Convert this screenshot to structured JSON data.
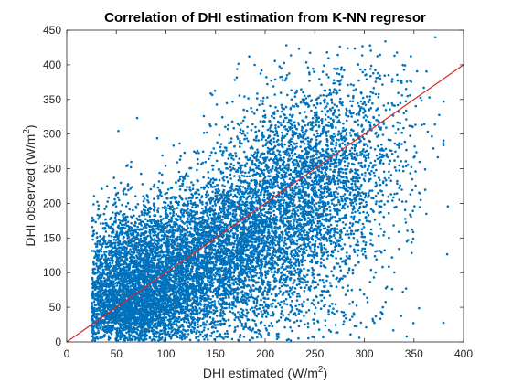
{
  "chart_data": {
    "type": "scatter",
    "title": "Correlation of DHI estimation from K-NN regresor",
    "xlabel_main": "DHI estimated (W/m",
    "xlabel_sup": "2",
    "xlabel_tail": ")",
    "ylabel_main": "DHI observed (W/m",
    "ylabel_sup": "2",
    "ylabel_tail": ")",
    "xlim": [
      0,
      400
    ],
    "ylim": [
      0,
      450
    ],
    "x_ticks": [
      "0",
      "50",
      "100",
      "150",
      "200",
      "250",
      "300",
      "350",
      "400"
    ],
    "y_ticks": [
      "0",
      "50",
      "100",
      "150",
      "200",
      "250",
      "300",
      "350",
      "400",
      "450"
    ],
    "grid": false,
    "box": true,
    "marker_color": "#0072BD",
    "reference_line": {
      "from": [
        0,
        0
      ],
      "to": [
        400,
        400
      ],
      "color": "#D62728"
    },
    "density_regions": [
      {
        "x_center": 80,
        "y_center": 90,
        "x_spread": 45,
        "y_spread": 50,
        "count": 4200
      },
      {
        "x_center": 170,
        "y_center": 145,
        "x_spread": 50,
        "y_spread": 50,
        "count": 3200
      },
      {
        "x_center": 240,
        "y_center": 230,
        "x_spread": 45,
        "y_spread": 60,
        "count": 2300
      },
      {
        "x_center": 60,
        "y_center": 40,
        "x_spread": 30,
        "y_spread": 25,
        "count": 1400
      },
      {
        "x_center": 280,
        "y_center": 320,
        "x_spread": 45,
        "y_spread": 55,
        "count": 500
      },
      {
        "x_center": 170,
        "y_center": 40,
        "x_spread": 80,
        "y_spread": 30,
        "count": 500
      }
    ]
  }
}
